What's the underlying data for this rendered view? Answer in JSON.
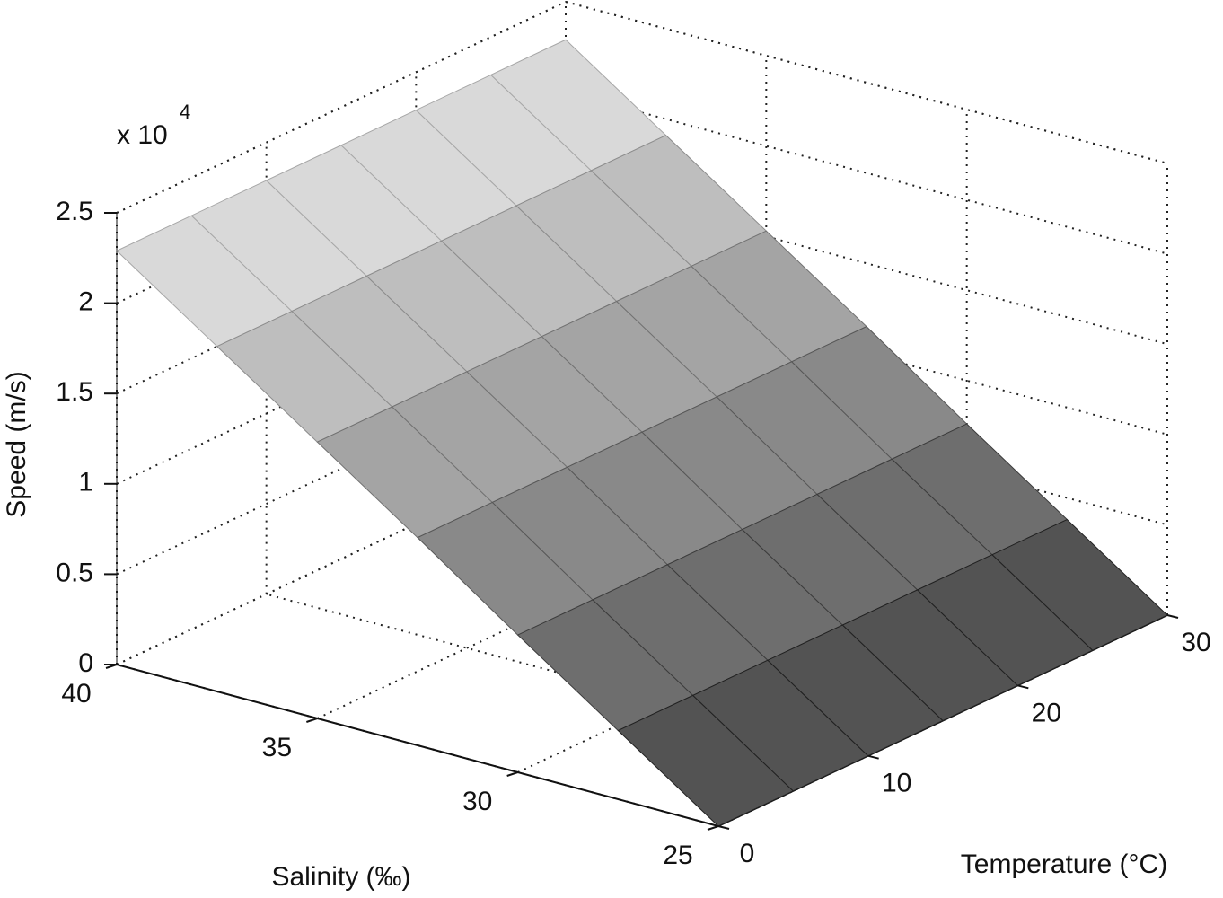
{
  "chart_data": {
    "type": "surface",
    "xlabel": "Temperature (°C)",
    "ylabel": "Salinity (‰)",
    "zlabel": "Speed (m/s)",
    "exponent_label": "x 10",
    "exponent": "4",
    "x": [
      0,
      5,
      10,
      15,
      20,
      25,
      30
    ],
    "y": [
      25,
      27.5,
      30,
      32.5,
      35,
      37.5,
      40
    ],
    "z": [
      [
        0,
        0,
        0,
        0,
        0,
        0,
        0
      ],
      [
        0.38,
        0.38,
        0.38,
        0.38,
        0.38,
        0.38,
        0.38
      ],
      [
        0.76,
        0.76,
        0.76,
        0.76,
        0.76,
        0.76,
        0.76
      ],
      [
        1.15,
        1.15,
        1.15,
        1.15,
        1.15,
        1.15,
        1.15
      ],
      [
        1.53,
        1.53,
        1.53,
        1.53,
        1.53,
        1.53,
        1.53
      ],
      [
        1.91,
        1.91,
        1.91,
        1.91,
        1.91,
        1.91,
        1.91
      ],
      [
        2.29,
        2.29,
        2.29,
        2.29,
        2.29,
        2.29,
        2.29
      ]
    ],
    "xlim": [
      0,
      30
    ],
    "xticks": [
      0,
      10,
      20,
      30
    ],
    "ylim": [
      25,
      40
    ],
    "yticks": [
      25,
      30,
      35,
      40
    ],
    "zlim": [
      0,
      2.5
    ],
    "zticks": [
      0,
      0.5,
      1,
      1.5,
      2,
      2.5
    ],
    "grid": true
  }
}
